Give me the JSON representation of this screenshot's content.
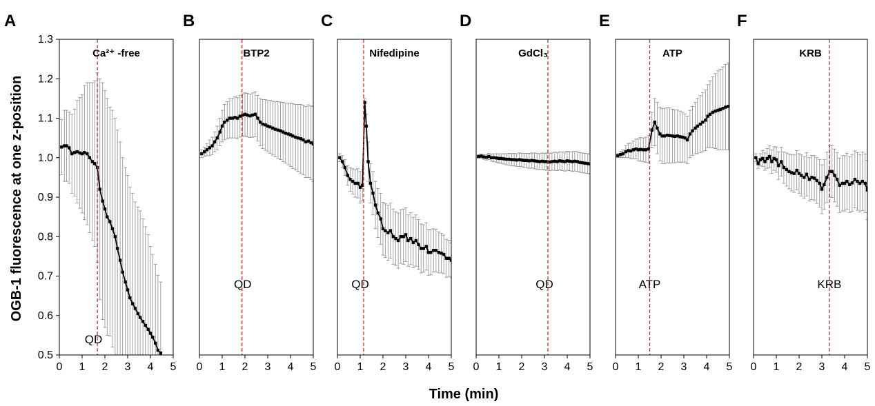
{
  "axis": {
    "ylabel": "OGB-1 fluorescence at one z-position",
    "xlabel": "Time (min)",
    "xlim": [
      0,
      5
    ],
    "ylim": [
      0.5,
      1.3
    ],
    "xticks": [
      "0",
      "1",
      "2",
      "3",
      "4",
      "5"
    ],
    "yticks": [
      "0.5",
      "0.6",
      "0.7",
      "0.8",
      "0.9",
      "1.0",
      "1.1",
      "1.2",
      "1.3"
    ]
  },
  "colors": {
    "line": "#000000",
    "error": "#8a8a8a",
    "event": "#e0261f"
  },
  "chart_data": [
    {
      "panel": "A",
      "type": "line",
      "title": "Ca²⁺ -free",
      "event_label": "QD",
      "event_x": 1.67,
      "annot_x": 1.5,
      "annot_y": 0.54,
      "x": [
        0.1,
        0.22,
        0.32,
        0.43,
        0.55,
        0.67,
        0.78,
        0.9,
        1.0,
        1.1,
        1.22,
        1.33,
        1.45,
        1.55,
        1.67,
        1.78,
        1.9,
        2.0,
        2.1,
        2.22,
        2.33,
        2.45,
        2.55,
        2.67,
        2.78,
        2.9,
        3.0,
        3.1,
        3.22,
        3.33,
        3.45,
        3.55,
        3.67,
        3.78,
        3.9,
        4.0,
        4.1,
        4.22,
        4.33,
        4.45
      ],
      "y": [
        1.027,
        1.03,
        1.03,
        1.025,
        1.01,
        1.013,
        1.015,
        1.012,
        1.01,
        1.013,
        1.01,
        1.0,
        0.99,
        0.985,
        0.975,
        0.92,
        0.89,
        0.87,
        0.85,
        0.838,
        0.82,
        0.8,
        0.77,
        0.74,
        0.71,
        0.685,
        0.665,
        0.645,
        0.63,
        0.618,
        0.605,
        0.595,
        0.585,
        0.575,
        0.565,
        0.555,
        0.545,
        0.53,
        0.512,
        0.505
      ],
      "err": [
        0.07,
        0.09,
        0.09,
        0.09,
        0.1,
        0.11,
        0.13,
        0.14,
        0.15,
        0.17,
        0.18,
        0.19,
        0.2,
        0.21,
        0.24,
        0.28,
        0.3,
        0.3,
        0.3,
        0.29,
        0.3,
        0.3,
        0.3,
        0.3,
        0.29,
        0.29,
        0.29,
        0.28,
        0.28,
        0.27,
        0.27,
        0.27,
        0.26,
        0.25,
        0.24,
        0.22,
        0.21,
        0.2,
        0.19,
        0.18
      ]
    },
    {
      "panel": "B",
      "type": "line",
      "title": "BTP2",
      "event_label": "QD",
      "event_x": 1.87,
      "annot_x": 1.9,
      "annot_y": 0.68,
      "x": [
        0.1,
        0.22,
        0.33,
        0.45,
        0.56,
        0.67,
        0.78,
        0.9,
        1.0,
        1.1,
        1.22,
        1.33,
        1.45,
        1.56,
        1.67,
        1.78,
        1.9,
        2.0,
        2.1,
        2.22,
        2.33,
        2.45,
        2.56,
        2.67,
        2.78,
        2.9,
        3.0,
        3.1,
        3.22,
        3.33,
        3.45,
        3.56,
        3.67,
        3.78,
        3.9,
        4.0,
        4.1,
        4.22,
        4.33,
        4.45,
        4.56,
        4.67,
        4.78,
        4.9,
        5.0
      ],
      "y": [
        1.01,
        1.015,
        1.02,
        1.025,
        1.03,
        1.04,
        1.05,
        1.065,
        1.08,
        1.09,
        1.095,
        1.1,
        1.1,
        1.102,
        1.1,
        1.105,
        1.108,
        1.11,
        1.108,
        1.106,
        1.108,
        1.11,
        1.1,
        1.09,
        1.085,
        1.083,
        1.08,
        1.078,
        1.075,
        1.072,
        1.07,
        1.068,
        1.065,
        1.062,
        1.06,
        1.058,
        1.055,
        1.052,
        1.05,
        1.048,
        1.045,
        1.04,
        1.042,
        1.038,
        1.035
      ],
      "err": [
        0.01,
        0.012,
        0.015,
        0.02,
        0.022,
        0.025,
        0.03,
        0.035,
        0.04,
        0.045,
        0.047,
        0.05,
        0.05,
        0.052,
        0.052,
        0.053,
        0.054,
        0.055,
        0.055,
        0.055,
        0.056,
        0.057,
        0.058,
        0.06,
        0.062,
        0.064,
        0.065,
        0.067,
        0.068,
        0.07,
        0.072,
        0.073,
        0.075,
        0.076,
        0.078,
        0.08,
        0.082,
        0.083,
        0.085,
        0.087,
        0.088,
        0.09,
        0.092,
        0.093,
        0.095
      ]
    },
    {
      "panel": "C",
      "type": "line",
      "title": "Nifedipine",
      "event_label": "QD",
      "event_x": 1.15,
      "annot_x": 1.0,
      "annot_y": 0.68,
      "x": [
        0.1,
        0.22,
        0.33,
        0.45,
        0.56,
        0.67,
        0.78,
        0.9,
        1.0,
        1.1,
        1.2,
        1.27,
        1.35,
        1.45,
        1.56,
        1.67,
        1.78,
        1.9,
        2.0,
        2.1,
        2.22,
        2.33,
        2.45,
        2.56,
        2.67,
        2.78,
        2.9,
        3.0,
        3.1,
        3.22,
        3.33,
        3.45,
        3.56,
        3.67,
        3.78,
        3.9,
        4.0,
        4.1,
        4.22,
        4.33,
        4.45,
        4.56,
        4.67,
        4.78,
        4.9,
        5.0
      ],
      "y": [
        1.0,
        0.99,
        0.975,
        0.955,
        0.945,
        0.94,
        0.935,
        0.935,
        0.925,
        0.93,
        1.14,
        1.08,
        0.99,
        0.935,
        0.91,
        0.88,
        0.86,
        0.845,
        0.82,
        0.815,
        0.81,
        0.815,
        0.8,
        0.795,
        0.79,
        0.8,
        0.8,
        0.805,
        0.79,
        0.795,
        0.785,
        0.79,
        0.78,
        0.77,
        0.77,
        0.775,
        0.76,
        0.76,
        0.765,
        0.765,
        0.76,
        0.758,
        0.755,
        0.745,
        0.745,
        0.74
      ],
      "err": [
        0.01,
        0.015,
        0.02,
        0.025,
        0.03,
        0.032,
        0.035,
        0.037,
        0.04,
        0.04,
        0.01,
        0.03,
        0.05,
        0.05,
        0.055,
        0.06,
        0.062,
        0.065,
        0.067,
        0.068,
        0.07,
        0.07,
        0.07,
        0.068,
        0.07,
        0.068,
        0.07,
        0.068,
        0.065,
        0.066,
        0.064,
        0.065,
        0.063,
        0.062,
        0.06,
        0.06,
        0.058,
        0.057,
        0.055,
        0.054,
        0.052,
        0.05,
        0.049,
        0.048,
        0.046,
        0.044
      ]
    },
    {
      "panel": "D",
      "type": "line",
      "title": "GdCl₃",
      "event_label": "QD",
      "event_x": 3.15,
      "annot_x": 3.0,
      "annot_y": 0.68,
      "x": [
        0.1,
        0.22,
        0.33,
        0.45,
        0.56,
        0.67,
        0.78,
        0.9,
        1.0,
        1.1,
        1.22,
        1.33,
        1.45,
        1.56,
        1.67,
        1.78,
        1.9,
        2.0,
        2.1,
        2.22,
        2.33,
        2.45,
        2.56,
        2.67,
        2.78,
        2.9,
        3.0,
        3.1,
        3.22,
        3.33,
        3.45,
        3.56,
        3.67,
        3.78,
        3.9,
        4.0,
        4.1,
        4.22,
        4.33,
        4.45,
        4.56,
        4.67,
        4.78,
        4.9,
        5.0
      ],
      "y": [
        1.003,
        1.004,
        1.002,
        1.001,
        1.003,
        1.0,
        1.0,
        0.999,
        0.998,
        0.998,
        0.997,
        0.996,
        0.996,
        0.995,
        0.995,
        0.994,
        0.995,
        0.994,
        0.993,
        0.993,
        0.992,
        0.993,
        0.992,
        0.991,
        0.99,
        0.991,
        0.99,
        0.99,
        0.989,
        0.99,
        0.991,
        0.99,
        0.992,
        0.991,
        0.99,
        0.992,
        0.991,
        0.99,
        0.991,
        0.99,
        0.988,
        0.987,
        0.986,
        0.985,
        0.984
      ],
      "err": [
        0.004,
        0.005,
        0.006,
        0.007,
        0.008,
        0.009,
        0.01,
        0.011,
        0.012,
        0.012,
        0.013,
        0.014,
        0.015,
        0.015,
        0.016,
        0.016,
        0.017,
        0.017,
        0.018,
        0.018,
        0.019,
        0.019,
        0.02,
        0.02,
        0.02,
        0.021,
        0.021,
        0.022,
        0.022,
        0.022,
        0.023,
        0.023,
        0.023,
        0.024,
        0.024,
        0.024,
        0.024,
        0.025,
        0.025,
        0.025,
        0.025,
        0.025,
        0.025,
        0.025,
        0.025
      ]
    },
    {
      "panel": "E",
      "type": "line",
      "title": "ATP",
      "event_label": "ATP",
      "event_x": 1.5,
      "annot_x": 1.5,
      "annot_y": 0.68,
      "x": [
        0.1,
        0.22,
        0.33,
        0.45,
        0.56,
        0.67,
        0.78,
        0.9,
        1.0,
        1.1,
        1.22,
        1.33,
        1.45,
        1.6,
        1.72,
        1.83,
        1.95,
        2.05,
        2.15,
        2.27,
        2.38,
        2.5,
        2.6,
        2.72,
        2.83,
        2.95,
        3.05,
        3.15,
        3.27,
        3.38,
        3.5,
        3.6,
        3.72,
        3.83,
        3.95,
        4.05,
        4.15,
        4.27,
        4.38,
        4.5,
        4.6,
        4.72,
        4.83,
        4.95
      ],
      "y": [
        1.005,
        1.008,
        1.01,
        1.015,
        1.018,
        1.017,
        1.02,
        1.022,
        1.02,
        1.021,
        1.02,
        1.02,
        1.022,
        1.07,
        1.09,
        1.075,
        1.06,
        1.055,
        1.055,
        1.057,
        1.056,
        1.055,
        1.054,
        1.055,
        1.053,
        1.052,
        1.05,
        1.045,
        1.06,
        1.068,
        1.075,
        1.08,
        1.085,
        1.09,
        1.095,
        1.105,
        1.11,
        1.115,
        1.118,
        1.12,
        1.122,
        1.125,
        1.128,
        1.13
      ],
      "err": [
        0.005,
        0.008,
        0.01,
        0.015,
        0.018,
        0.02,
        0.022,
        0.025,
        0.028,
        0.03,
        0.03,
        0.032,
        0.035,
        0.045,
        0.06,
        0.065,
        0.068,
        0.07,
        0.07,
        0.07,
        0.07,
        0.068,
        0.067,
        0.066,
        0.065,
        0.063,
        0.061,
        0.06,
        0.06,
        0.062,
        0.065,
        0.07,
        0.072,
        0.075,
        0.077,
        0.08,
        0.085,
        0.09,
        0.095,
        0.1,
        0.102,
        0.105,
        0.108,
        0.11
      ]
    },
    {
      "panel": "F",
      "type": "line",
      "title": "KRB",
      "event_label": "KRB",
      "event_x": 3.33,
      "annot_x": 3.33,
      "annot_y": 0.68,
      "x": [
        0.1,
        0.2,
        0.3,
        0.4,
        0.5,
        0.6,
        0.7,
        0.8,
        0.9,
        1.0,
        1.1,
        1.22,
        1.33,
        1.45,
        1.56,
        1.67,
        1.78,
        1.9,
        2.0,
        2.1,
        2.22,
        2.33,
        2.45,
        2.56,
        2.67,
        2.78,
        2.9,
        3.0,
        3.1,
        3.22,
        3.35,
        3.45,
        3.56,
        3.67,
        3.78,
        3.9,
        4.0,
        4.1,
        4.22,
        4.33,
        4.45,
        4.56,
        4.67,
        4.78,
        4.9,
        5.0
      ],
      "y": [
        1.0,
        0.985,
        0.995,
        0.998,
        0.99,
        0.998,
        1.003,
        0.99,
        0.998,
        0.995,
        0.98,
        0.99,
        0.975,
        0.97,
        0.965,
        0.962,
        0.96,
        0.968,
        0.96,
        0.955,
        0.95,
        0.958,
        0.945,
        0.95,
        0.948,
        0.942,
        0.935,
        0.92,
        0.932,
        0.95,
        0.965,
        0.965,
        0.955,
        0.945,
        0.93,
        0.935,
        0.935,
        0.94,
        0.932,
        0.936,
        0.945,
        0.94,
        0.935,
        0.94,
        0.935,
        0.918
      ],
      "err": [
        0.01,
        0.012,
        0.015,
        0.02,
        0.022,
        0.025,
        0.028,
        0.03,
        0.03,
        0.032,
        0.035,
        0.037,
        0.04,
        0.042,
        0.044,
        0.046,
        0.048,
        0.05,
        0.05,
        0.052,
        0.053,
        0.055,
        0.055,
        0.056,
        0.057,
        0.058,
        0.06,
        0.062,
        0.063,
        0.064,
        0.065,
        0.066,
        0.067,
        0.068,
        0.069,
        0.07,
        0.07,
        0.071,
        0.071,
        0.072,
        0.072,
        0.073,
        0.073,
        0.074,
        0.074,
        0.075
      ]
    }
  ]
}
